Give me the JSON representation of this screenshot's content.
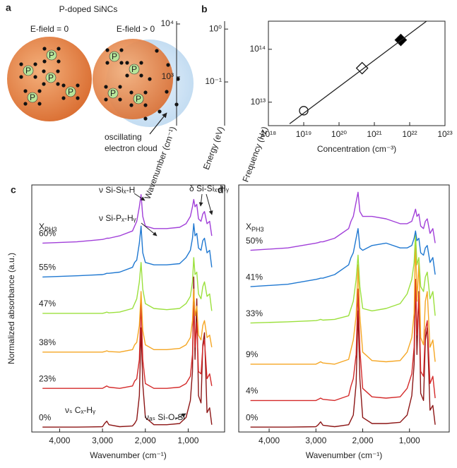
{
  "diagram": {
    "panel_label": "a",
    "title": "P-doped SiNCs",
    "left_label": "E-field = 0",
    "right_label": "E-field > 0",
    "nc_left_dopants": [
      "P",
      "P",
      "P",
      "P",
      "P"
    ],
    "nc_right_dopants": [
      "P",
      "P",
      "P",
      "P"
    ],
    "annotation_lines": [
      "oscillating",
      "electron cloud"
    ]
  },
  "chart_data": [
    {
      "type": "scatter",
      "panel_label": "b",
      "xscale": "log",
      "yscale": "log",
      "xlabel": "Concentration (cm⁻³)",
      "xlim": [
        1e+18,
        1e+23
      ],
      "xticks": [
        {
          "value": 1e+18,
          "label": "10¹⁸"
        },
        {
          "value": 1e+19,
          "label": "10¹⁹"
        },
        {
          "value": 1e+20,
          "label": "10²⁰"
        },
        {
          "value": 1e+21,
          "label": "10²¹"
        },
        {
          "value": 1e+22,
          "label": "10²²"
        },
        {
          "value": 1e+23,
          "label": "10²³"
        }
      ],
      "ylabel": "Frequency (Hz)",
      "ylim": [
        3600000000000.0,
        340000000000000.0
      ],
      "yticks": [
        {
          "value": 10000000000000.0,
          "label": "10¹³"
        },
        {
          "value": 100000000000000.0,
          "label": "10¹⁴"
        }
      ],
      "extra_axes": [
        {
          "label": "Wavenumber (cm⁻¹)",
          "lim": [
            120,
            11300
          ],
          "ticks": [
            {
              "value": 1000,
              "label": "10³"
            },
            {
              "value": 10000,
              "label": "10⁴"
            }
          ]
        },
        {
          "label": "Energy (eV)",
          "lim": [
            0.0149,
            1.41
          ],
          "ticks": [
            {
              "value": 0.1,
              "label": "10⁻¹"
            },
            {
              "value": 1,
              "label": "10⁰"
            }
          ]
        }
      ],
      "series": [
        {
          "marker": "circle",
          "fill": "#ffffff",
          "x": [
            1e+19
          ],
          "values": [
            6900000000000.0
          ]
        },
        {
          "marker": "diamond",
          "fill": "#ffffff",
          "x": [
            4.5e+20
          ],
          "values": [
            44000000000000.0
          ]
        },
        {
          "marker": "diamond",
          "fill": "#000000",
          "x": [
            5.6e+21
          ],
          "values": [
            150000000000000.0
          ]
        },
        {
          "marker": "line",
          "x": [
            3.98e+18,
            3e+22
          ],
          "values": [
            3900000000000.0,
            340000000000000.0
          ]
        }
      ]
    },
    {
      "type": "line",
      "panel_label": "c",
      "ylabel": "Normalized absorbance (a.u.)",
      "xlabel": "Wavenumber (cm⁻¹)",
      "xlim": [
        4650,
        150
      ],
      "ylim": [
        0,
        10.2
      ],
      "xticks": [
        {
          "value": 4000,
          "label": "4,000"
        },
        {
          "value": 3000,
          "label": "3,000"
        },
        {
          "value": 2000,
          "label": "2,000"
        },
        {
          "value": 1000,
          "label": "1,000"
        }
      ],
      "legend_title": "X",
      "legend_title_sub": "PH3",
      "annotations": [
        "ν Si-Siₓ-H",
        "ν Si-Pₓ-Hᵧ",
        "δ Si-Siₓ-Hᵧ",
        "νₛ Cₓ-Hᵧ",
        "νₐₛ Si-O-Si"
      ],
      "x": [
        4400,
        3600,
        3000,
        2950,
        2900,
        2850,
        2600,
        2300,
        2250,
        2200,
        2140,
        2100,
        2060,
        2000,
        1800,
        1500,
        1200,
        1050,
        950,
        900,
        870,
        840,
        800,
        760,
        700,
        660,
        620,
        560,
        500,
        450
      ],
      "series": [
        {
          "name": "0%",
          "color": "#8c1515",
          "values": [
            0.2,
            0.2,
            0.22,
            0.35,
            0.45,
            0.3,
            0.22,
            0.25,
            0.35,
            0.5,
            1.5,
            4.3,
            2.0,
            0.6,
            0.3,
            0.3,
            0.35,
            0.6,
            1.3,
            2.5,
            6.4,
            3.0,
            5.5,
            1.5,
            1.2,
            3.6,
            4.1,
            0.8,
            1.0,
            0.3
          ]
        },
        {
          "name": "23%",
          "color": "#d42a2a",
          "values": [
            1.8,
            1.8,
            1.8,
            1.85,
            1.9,
            1.85,
            1.8,
            1.9,
            2.1,
            2.2,
            3.0,
            5.4,
            3.0,
            2.0,
            1.8,
            1.8,
            1.85,
            2.0,
            2.3,
            3.2,
            5.3,
            3.5,
            4.5,
            2.5,
            2.4,
            3.5,
            3.8,
            2.2,
            2.4,
            1.9
          ]
        },
        {
          "name": "38%",
          "color": "#f5a623",
          "values": [
            3.3,
            3.3,
            3.3,
            3.32,
            3.35,
            3.32,
            3.3,
            3.4,
            3.6,
            3.7,
            4.4,
            5.8,
            4.2,
            3.6,
            3.4,
            3.4,
            3.45,
            3.6,
            3.9,
            4.6,
            5.9,
            4.8,
            5.2,
            4.0,
            3.8,
            4.4,
            4.6,
            3.9,
            4.0,
            3.5
          ]
        },
        {
          "name": "47%",
          "color": "#9be03c",
          "values": [
            4.9,
            4.9,
            4.9,
            4.92,
            4.95,
            4.92,
            4.95,
            5.1,
            5.3,
            5.5,
            6.2,
            7.0,
            5.9,
            5.3,
            5.1,
            5.05,
            5.1,
            5.3,
            5.6,
            6.2,
            7.2,
            6.5,
            6.6,
            5.7,
            5.5,
            6.0,
            6.2,
            5.6,
            5.7,
            5.0
          ]
        },
        {
          "name": "55%",
          "color": "#1f78d1",
          "values": [
            6.4,
            6.45,
            6.5,
            6.52,
            6.55,
            6.55,
            6.6,
            6.8,
            7.0,
            7.1,
            7.8,
            8.5,
            7.4,
            7.0,
            6.9,
            6.9,
            6.95,
            7.2,
            7.5,
            8.0,
            8.6,
            8.1,
            8.2,
            7.6,
            7.5,
            7.9,
            8.0,
            7.4,
            7.5,
            6.8
          ]
        },
        {
          "name": "60%",
          "color": "#a13fd9",
          "values": [
            7.8,
            7.85,
            7.95,
            7.97,
            8.0,
            8.0,
            8.1,
            8.3,
            8.5,
            8.7,
            9.3,
            9.8,
            8.9,
            8.5,
            8.4,
            8.4,
            8.45,
            8.6,
            8.9,
            9.3,
            9.6,
            9.3,
            9.4,
            8.8,
            8.7,
            9.0,
            9.1,
            8.6,
            8.7,
            8.1
          ]
        }
      ]
    },
    {
      "type": "line",
      "panel_label": "d",
      "xlabel": "Wavenumber (cm⁻¹)",
      "xlim": [
        4650,
        150
      ],
      "ylim": [
        0,
        10.2
      ],
      "xticks": [
        {
          "value": 4000,
          "label": "4,000"
        },
        {
          "value": 3000,
          "label": "3,000"
        },
        {
          "value": 2000,
          "label": "2,000"
        },
        {
          "value": 1000,
          "label": "1,000"
        }
      ],
      "legend_title": "X",
      "legend_title_sub": "PH3",
      "x": [
        4400,
        3600,
        3000,
        2950,
        2900,
        2850,
        2600,
        2300,
        2250,
        2200,
        2140,
        2100,
        2060,
        2000,
        1800,
        1500,
        1200,
        1050,
        950,
        900,
        870,
        840,
        800,
        760,
        700,
        660,
        620,
        560,
        500,
        450
      ],
      "series": [
        {
          "name": "0%",
          "color": "#8c1515",
          "values": [
            0.2,
            0.2,
            0.22,
            0.3,
            0.42,
            0.28,
            0.22,
            0.3,
            0.5,
            0.7,
            2.0,
            5.0,
            2.2,
            0.6,
            0.35,
            0.35,
            0.4,
            0.7,
            1.5,
            2.8,
            6.3,
            3.2,
            5.8,
            1.6,
            1.3,
            3.8,
            4.3,
            0.9,
            1.1,
            0.3
          ]
        },
        {
          "name": "4%",
          "color": "#d42a2a",
          "values": [
            1.3,
            1.3,
            1.3,
            1.35,
            1.4,
            1.35,
            1.3,
            1.5,
            1.9,
            2.2,
            3.2,
            5.9,
            3.4,
            1.8,
            1.45,
            1.4,
            1.45,
            1.8,
            2.4,
            3.5,
            6.3,
            4.0,
            5.7,
            2.5,
            2.3,
            4.2,
            4.6,
            2.0,
            2.3,
            1.4
          ]
        },
        {
          "name": "9%",
          "color": "#f5a623",
          "values": [
            2.8,
            2.8,
            2.8,
            2.85,
            2.9,
            2.85,
            2.8,
            3.0,
            3.4,
            3.8,
            4.8,
            6.9,
            4.8,
            3.3,
            2.95,
            2.9,
            2.95,
            3.3,
            3.9,
            4.9,
            8.0,
            5.4,
            7.0,
            3.9,
            3.6,
            5.4,
            5.8,
            3.5,
            3.8,
            2.9
          ]
        },
        {
          "name": "33%",
          "color": "#9be03c",
          "values": [
            4.5,
            4.55,
            4.6,
            4.62,
            4.65,
            4.62,
            4.65,
            4.8,
            5.1,
            5.4,
            6.3,
            7.3,
            6.0,
            5.1,
            5.0,
            5.1,
            5.3,
            5.7,
            6.3,
            7.0,
            8.2,
            6.9,
            7.2,
            6.0,
            5.8,
            6.4,
            6.6,
            5.5,
            5.8,
            4.8
          ]
        },
        {
          "name": "41%",
          "color": "#1f78d1",
          "values": [
            6.0,
            6.1,
            6.3,
            6.32,
            6.35,
            6.35,
            6.5,
            6.9,
            7.2,
            7.4,
            8.0,
            8.4,
            7.6,
            7.5,
            7.7,
            7.8,
            7.6,
            7.6,
            7.7,
            8.0,
            8.3,
            7.9,
            8.0,
            7.4,
            7.3,
            7.6,
            7.7,
            7.0,
            7.2,
            6.5
          ]
        },
        {
          "name": "50%",
          "color": "#a13fd9",
          "values": [
            7.5,
            7.6,
            7.8,
            7.82,
            7.85,
            7.85,
            8.0,
            8.4,
            8.7,
            8.9,
            9.5,
            9.9,
            9.1,
            8.9,
            8.9,
            8.8,
            8.6,
            8.6,
            8.7,
            9.0,
            9.2,
            8.9,
            9.0,
            8.5,
            8.4,
            8.7,
            8.8,
            8.2,
            8.4,
            7.8
          ]
        }
      ]
    }
  ]
}
